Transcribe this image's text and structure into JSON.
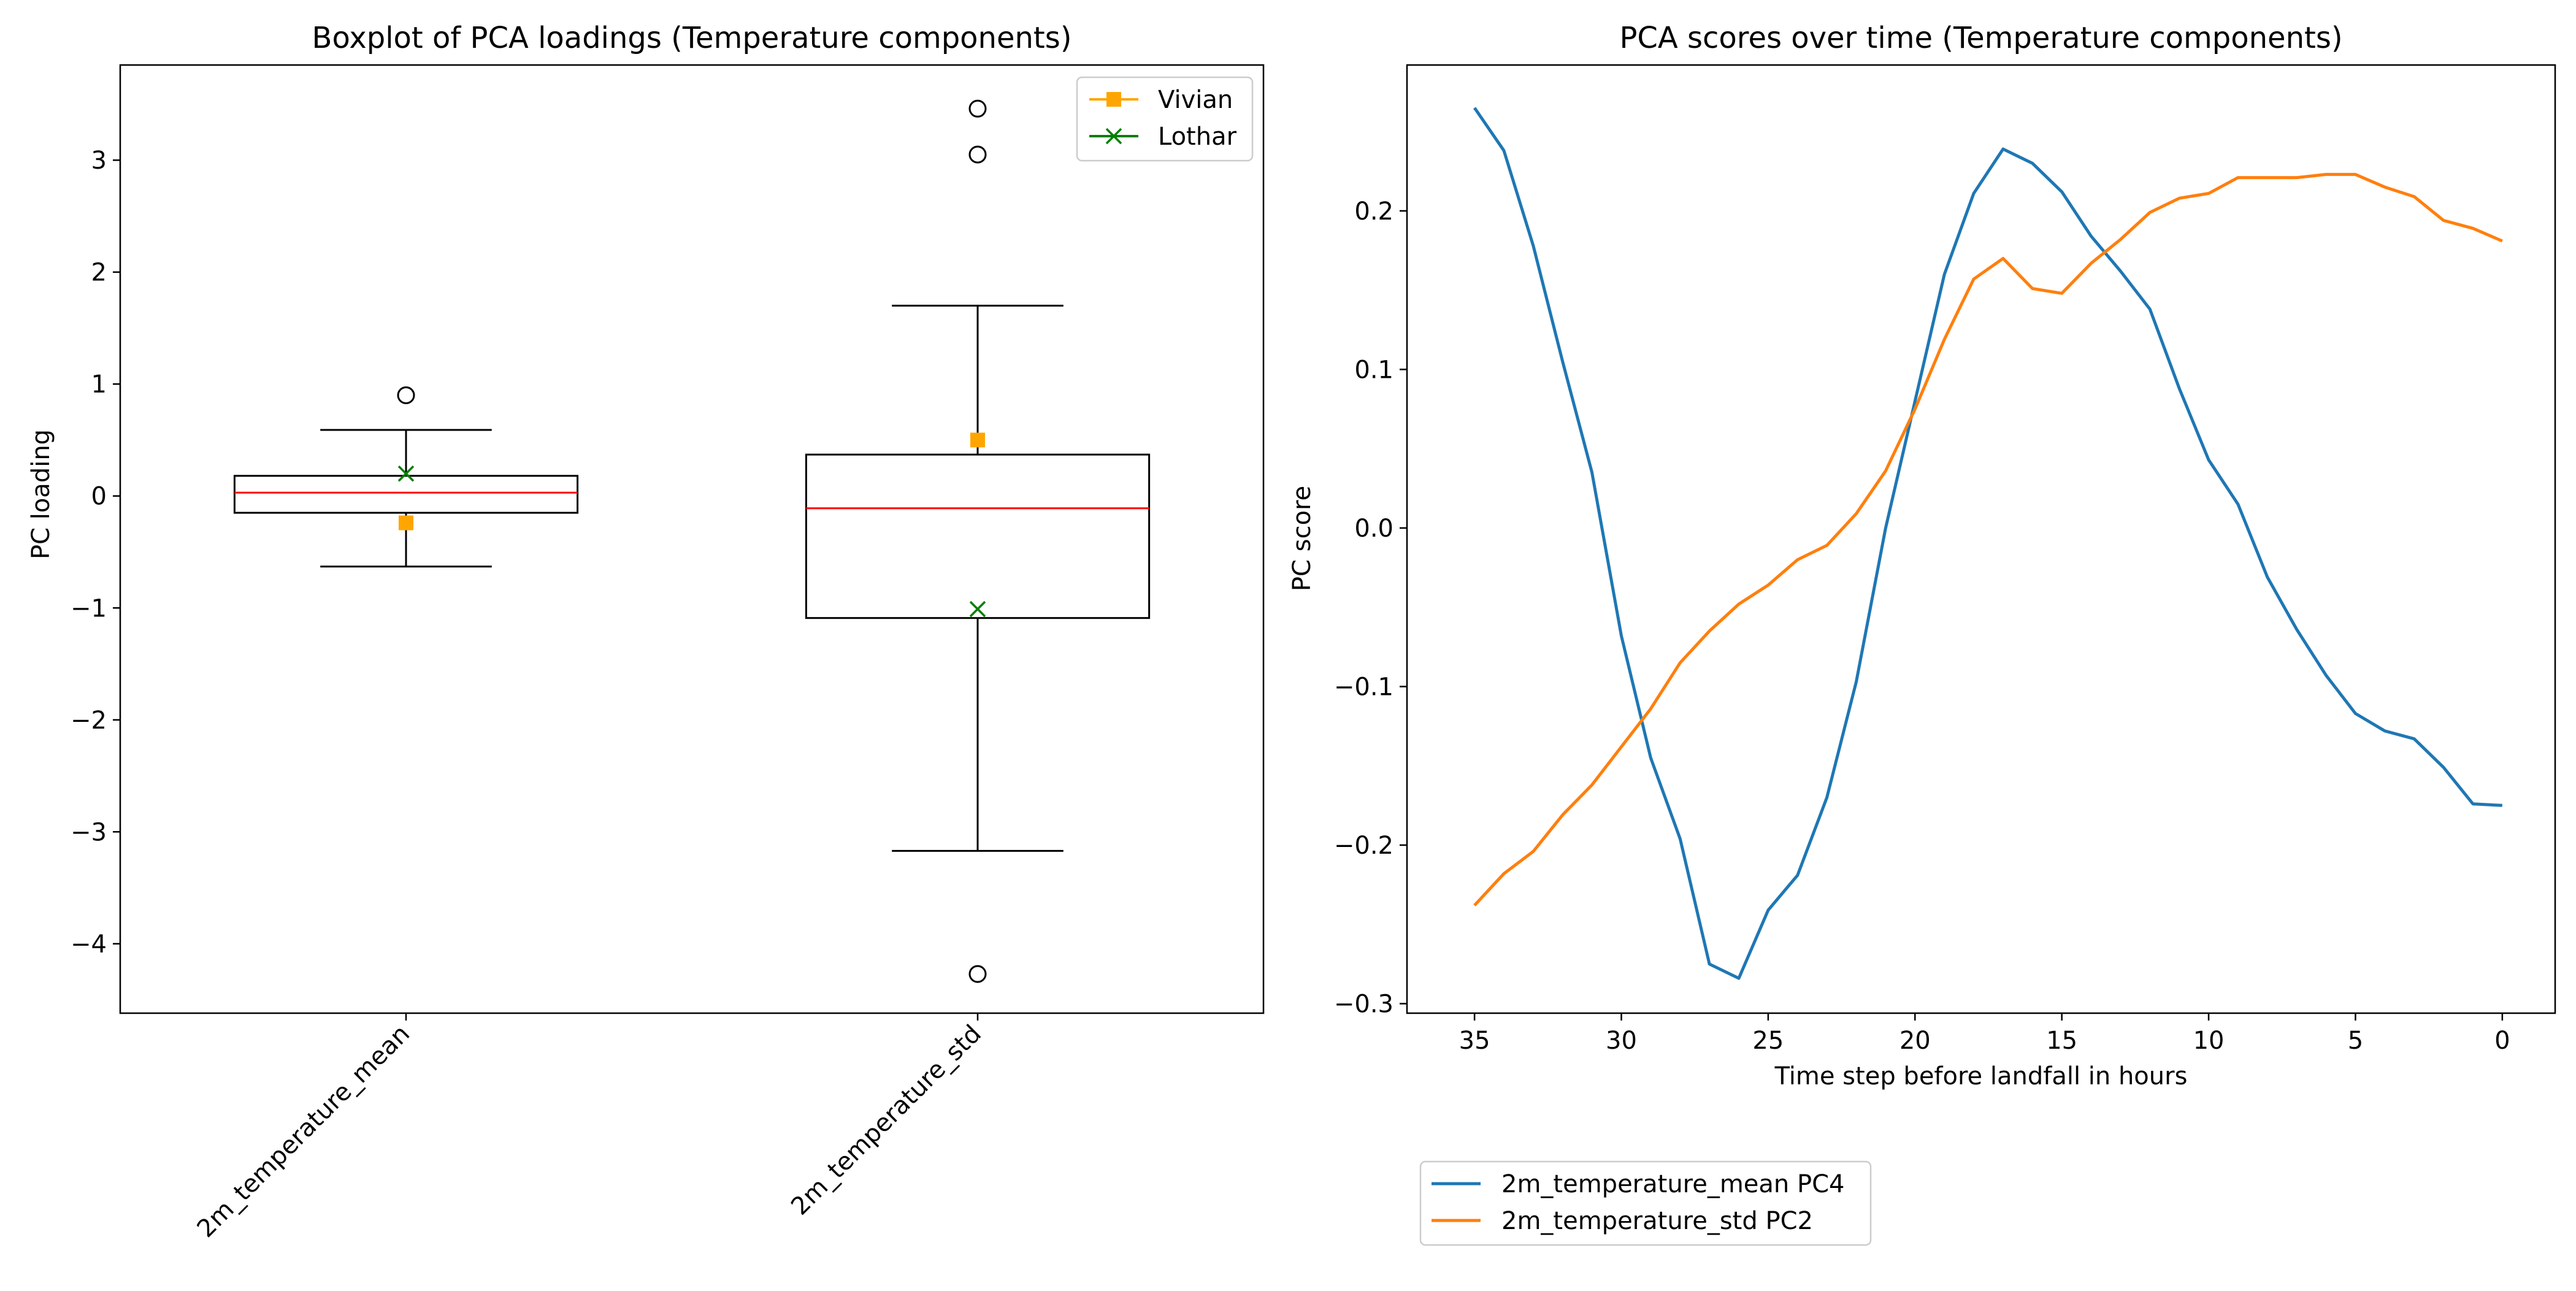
{
  "chart_data": [
    {
      "type": "box",
      "title": "Boxplot of PCA loadings (Temperature components)",
      "xlabel": "",
      "ylabel": "PC loading",
      "ylim": [
        -4.62,
        3.85
      ],
      "yticks": [
        -4,
        -3,
        -2,
        -1,
        0,
        1,
        2,
        3
      ],
      "ytick_labels": [
        "−4",
        "−3",
        "−2",
        "−1",
        "0",
        "1",
        "2",
        "3"
      ],
      "grid": false,
      "legend_position": "top-right",
      "boxes": [
        {
          "category": "2m_temperature_mean",
          "whisker_low": -0.63,
          "q1": -0.15,
          "median": 0.03,
          "q3": 0.18,
          "whisker_high": 0.59,
          "outliers": [
            0.9
          ]
        },
        {
          "category": "2m_temperature_std",
          "whisker_low": -3.17,
          "q1": -1.09,
          "median": -0.11,
          "q3": 0.37,
          "whisker_high": 1.7,
          "outliers": [
            3.46,
            3.05,
            -4.27
          ]
        }
      ],
      "markers": [
        {
          "name": "Vivian",
          "symbol": "square",
          "color": "#FFA500",
          "values": [
            -0.24,
            0.5
          ]
        },
        {
          "name": "Lothar",
          "symbol": "x",
          "color": "#008000",
          "values": [
            0.2,
            -1.01
          ]
        }
      ],
      "box_color": "#000000",
      "median_color": "#FF0000"
    },
    {
      "type": "line",
      "title": "PCA scores over time (Temperature components)",
      "xlabel": "Time step before landfall in hours",
      "ylabel": "PC score",
      "xlim": [
        37.3,
        -1.8
      ],
      "ylim": [
        -0.306,
        0.292
      ],
      "xticks": [
        35,
        30,
        25,
        20,
        15,
        10,
        5,
        0
      ],
      "yticks": [
        -0.3,
        -0.2,
        -0.1,
        0.0,
        0.1,
        0.2
      ],
      "ytick_labels": [
        "−0.3",
        "−0.2",
        "−0.1",
        "0.0",
        "0.1",
        "0.2"
      ],
      "grid": false,
      "legend_position": "below the plot",
      "x": [
        35,
        34,
        33,
        32,
        31,
        30,
        29,
        28,
        27,
        26,
        25,
        24,
        23,
        22,
        21,
        20,
        19,
        18,
        17,
        16,
        15,
        14,
        13,
        12,
        11,
        10,
        9,
        8,
        7,
        6,
        5,
        4,
        3,
        2,
        1,
        0
      ],
      "series": [
        {
          "name": "2m_temperature_mean PC4",
          "color": "#1F77B4",
          "values": [
            0.265,
            0.238,
            0.178,
            0.105,
            0.035,
            -0.068,
            -0.145,
            -0.196,
            -0.275,
            -0.284,
            -0.241,
            -0.219,
            -0.17,
            -0.097,
            0.0,
            0.08,
            0.16,
            0.211,
            0.239,
            0.23,
            0.212,
            0.184,
            0.162,
            0.138,
            0.088,
            0.043,
            0.015,
            -0.031,
            -0.064,
            -0.093,
            -0.117,
            -0.128,
            -0.133,
            -0.151,
            -0.174,
            -0.175
          ]
        },
        {
          "name": "2m_temperature_std PC2",
          "color": "#FF7F0E",
          "values": [
            -0.238,
            -0.218,
            -0.204,
            -0.181,
            -0.162,
            -0.138,
            -0.114,
            -0.085,
            -0.065,
            -0.048,
            -0.036,
            -0.02,
            -0.011,
            0.009,
            0.036,
            0.075,
            0.119,
            0.157,
            0.17,
            0.151,
            0.148,
            0.167,
            0.182,
            0.199,
            0.208,
            0.211,
            0.221,
            0.221,
            0.221,
            0.223,
            0.223,
            0.215,
            0.209,
            0.194,
            0.189,
            0.181
          ]
        }
      ]
    }
  ]
}
